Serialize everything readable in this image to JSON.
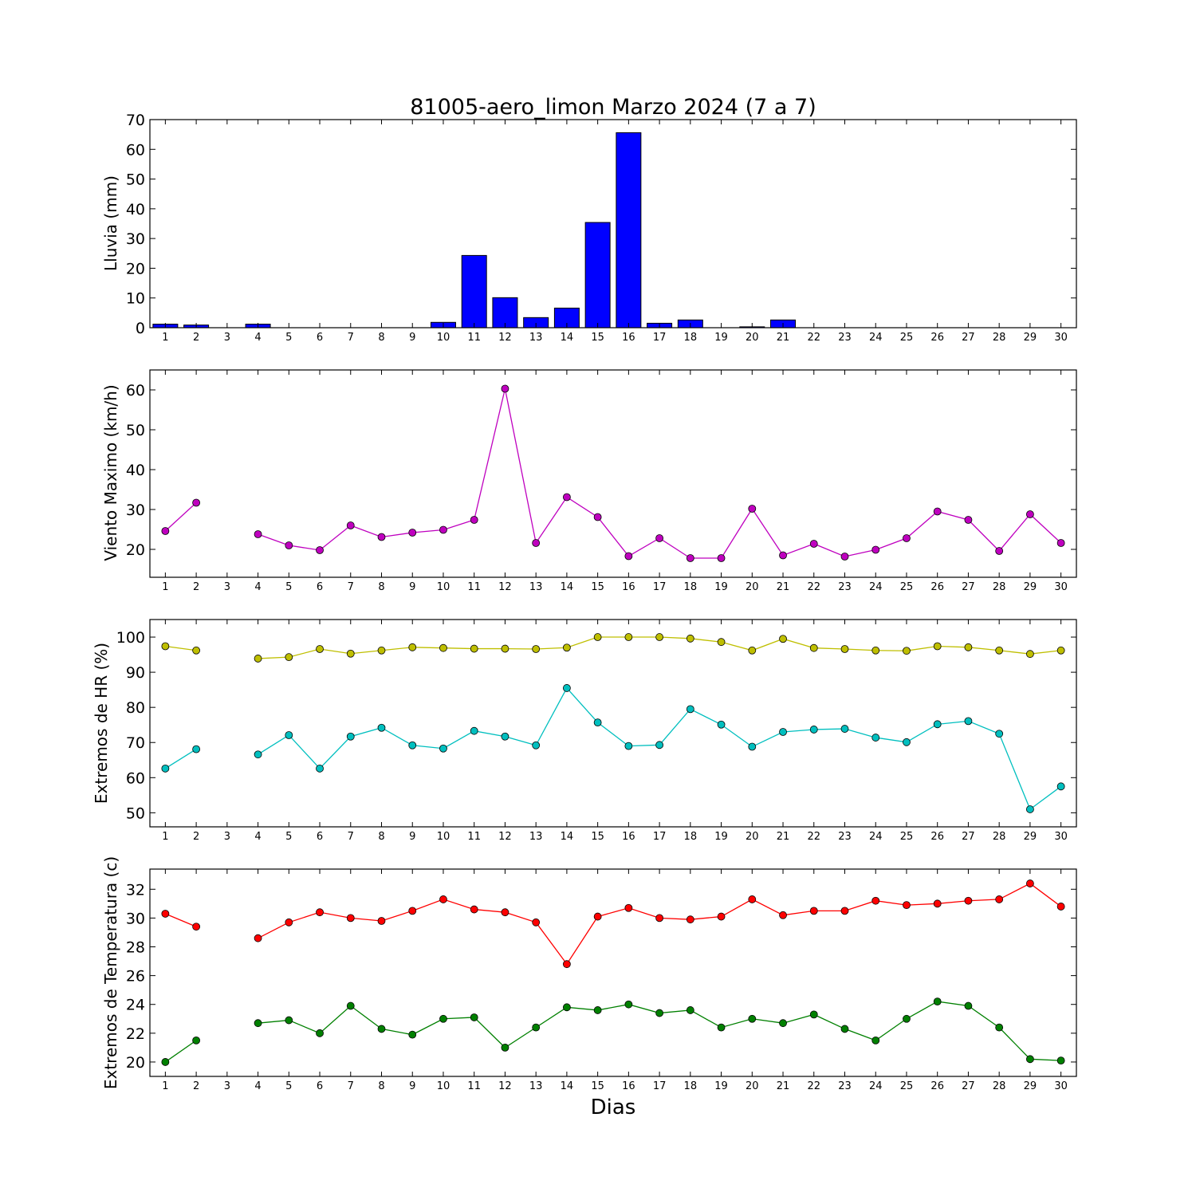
{
  "chart_data": [
    {
      "type": "bar",
      "title": "81005-aero_limon Marzo 2024  (7 a 7)",
      "ylabel": "Lluvia (mm)",
      "xlabel": "",
      "ylim": [
        0,
        70
      ],
      "yticks": [
        0,
        10,
        20,
        30,
        40,
        50,
        60,
        70
      ],
      "categories": [
        1,
        2,
        3,
        4,
        5,
        6,
        7,
        8,
        9,
        10,
        11,
        12,
        13,
        14,
        15,
        16,
        17,
        18,
        19,
        20,
        21,
        22,
        23,
        24,
        25,
        26,
        27,
        28,
        29,
        30
      ],
      "values": [
        1.2,
        0.9,
        null,
        1.2,
        0,
        0,
        0,
        0,
        0,
        1.8,
        24.3,
        10.1,
        3.4,
        6.6,
        35.4,
        65.6,
        1.5,
        2.6,
        0,
        0.3,
        2.6,
        0,
        0,
        0,
        0,
        0,
        0,
        0,
        0,
        0
      ],
      "bar_color": "#0000ff",
      "grid": false
    },
    {
      "type": "line",
      "ylabel": "Viento Maximo (km/h)",
      "ylim": [
        13,
        65
      ],
      "yticks": [
        20,
        30,
        40,
        50,
        60
      ],
      "x": [
        1,
        2,
        3,
        4,
        5,
        6,
        7,
        8,
        9,
        10,
        11,
        12,
        13,
        14,
        15,
        16,
        17,
        18,
        19,
        20,
        21,
        22,
        23,
        24,
        25,
        26,
        27,
        28,
        29,
        30
      ],
      "series": [
        {
          "color": "#bf00bf",
          "values": [
            24.6,
            31.7,
            null,
            23.8,
            21.0,
            19.8,
            26.0,
            23.1,
            24.2,
            24.9,
            27.4,
            60.3,
            21.6,
            33.1,
            28.1,
            18.3,
            22.8,
            17.8,
            17.8,
            30.2,
            18.5,
            21.4,
            18.2,
            19.9,
            22.8,
            29.5,
            27.4,
            19.6,
            28.8,
            21.6
          ]
        }
      ],
      "grid": false
    },
    {
      "type": "line",
      "ylabel": "Extremos de HR (%)",
      "ylim": [
        46,
        105
      ],
      "yticks": [
        50,
        60,
        70,
        80,
        90,
        100
      ],
      "x": [
        1,
        2,
        3,
        4,
        5,
        6,
        7,
        8,
        9,
        10,
        11,
        12,
        13,
        14,
        15,
        16,
        17,
        18,
        19,
        20,
        21,
        22,
        23,
        24,
        25,
        26,
        27,
        28,
        29,
        30
      ],
      "series": [
        {
          "color": "#bfbf00",
          "values": [
            97.4,
            96.2,
            null,
            93.9,
            94.3,
            96.6,
            95.3,
            96.2,
            97.1,
            96.9,
            96.7,
            96.7,
            96.6,
            97.0,
            100.0,
            100.0,
            100.0,
            99.6,
            98.6,
            96.2,
            99.5,
            96.9,
            96.6,
            96.2,
            96.1,
            97.4,
            97.1,
            96.2,
            95.2,
            96.2
          ]
        },
        {
          "color": "#00bfbf",
          "values": [
            62.6,
            68.1,
            null,
            66.6,
            72.1,
            62.6,
            71.7,
            74.2,
            69.2,
            68.3,
            73.3,
            71.7,
            69.2,
            85.5,
            75.7,
            69.0,
            69.3,
            79.5,
            75.1,
            68.8,
            73.0,
            73.7,
            73.9,
            71.4,
            70.1,
            75.2,
            76.1,
            72.5,
            51.0,
            57.5
          ]
        }
      ],
      "grid": false
    },
    {
      "type": "line",
      "ylabel": "Extremos de Temperatura (c)",
      "xlabel": "Dias",
      "ylim": [
        19,
        33.4
      ],
      "yticks": [
        20,
        22,
        24,
        26,
        28,
        30,
        32
      ],
      "x": [
        1,
        2,
        3,
        4,
        5,
        6,
        7,
        8,
        9,
        10,
        11,
        12,
        13,
        14,
        15,
        16,
        17,
        18,
        19,
        20,
        21,
        22,
        23,
        24,
        25,
        26,
        27,
        28,
        29,
        30
      ],
      "series": [
        {
          "color": "#ff0000",
          "values": [
            30.3,
            29.4,
            null,
            28.6,
            29.7,
            30.4,
            30.0,
            29.8,
            30.5,
            31.3,
            30.6,
            30.4,
            29.7,
            26.8,
            30.1,
            30.7,
            30.0,
            29.9,
            30.1,
            31.3,
            30.2,
            30.5,
            30.5,
            31.2,
            30.9,
            31.0,
            31.2,
            31.3,
            32.4,
            30.8
          ]
        },
        {
          "color": "#008000",
          "values": [
            20.0,
            21.5,
            null,
            22.7,
            22.9,
            22.0,
            23.9,
            22.3,
            21.9,
            23.0,
            23.1,
            21.0,
            22.4,
            23.8,
            23.6,
            24.0,
            23.4,
            23.6,
            22.4,
            23.0,
            22.7,
            23.3,
            22.3,
            21.5,
            23.0,
            24.2,
            23.9,
            22.4,
            20.2,
            20.1
          ]
        }
      ],
      "grid": false
    }
  ]
}
